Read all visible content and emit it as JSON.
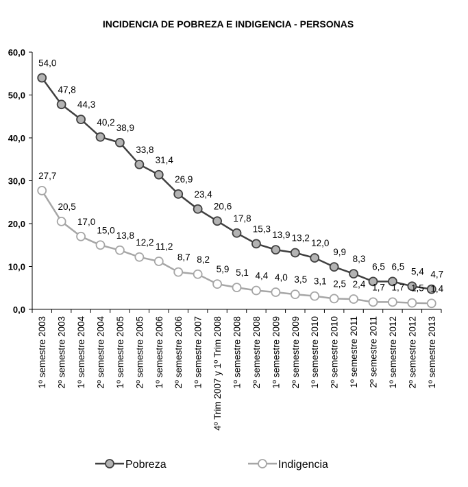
{
  "chart_data": {
    "type": "line",
    "title": "INCIDENCIA DE POBREZA E INDIGENCIA - PERSONAS",
    "xlabel": "",
    "ylabel": "",
    "ylim": [
      0,
      60
    ],
    "yticks": [
      "0,0",
      "10,0",
      "20,0",
      "30,0",
      "40,0",
      "50,0",
      "60,0"
    ],
    "ytick_values": [
      0,
      10,
      20,
      30,
      40,
      50,
      60
    ],
    "legend_position": "bottom",
    "categories": [
      "1º semestre 2003",
      "2º semestre 2003",
      "1º semestre 2004",
      "2º semestre 2004",
      "1º semestre 2005",
      "2º semestre 2005",
      "1º semestre 2006",
      "2º semestre 2006",
      "1º semestre  2007",
      "4º Trim 2007 y 1º Trim 2008",
      "1º semestre 2008",
      "2º semestre 2008",
      "1º semestre 2009",
      "2º semestre 2009",
      "1º semestre 2010",
      "2º semestre 2010",
      "1º semestre 2011",
      "2º semestre 2011",
      "1º semestre 2012",
      "2º semestre 2012",
      "1º semestre 2013"
    ],
    "series": [
      {
        "name": "Pobreza",
        "color": "#404040",
        "marker_fill": "#b3b3b3",
        "values": [
          54.0,
          47.8,
          44.3,
          40.2,
          38.9,
          33.8,
          31.4,
          26.9,
          23.4,
          20.6,
          17.8,
          15.3,
          13.9,
          13.2,
          12.0,
          9.9,
          8.3,
          6.5,
          6.5,
          5.4,
          4.7
        ],
        "labels": [
          "54,0",
          "47,8",
          "44,3",
          "40,2",
          "38,9",
          "33,8",
          "31,4",
          "26,9",
          "23,4",
          "20,6",
          "17,8",
          "15,3",
          "13,9",
          "13,2",
          "12,0",
          "9,9",
          "8,3",
          "6,5",
          "6,5",
          "5,4",
          "4,7"
        ]
      },
      {
        "name": "Indigencia",
        "color": "#a6a6a6",
        "marker_fill": "#ffffff",
        "values": [
          27.7,
          20.5,
          17.0,
          15.0,
          13.8,
          12.2,
          11.2,
          8.7,
          8.2,
          5.9,
          5.1,
          4.4,
          4.0,
          3.5,
          3.1,
          2.5,
          2.4,
          1.7,
          1.7,
          1.5,
          1.4
        ],
        "labels": [
          "27,7",
          "20,5",
          "17,0",
          "15,0",
          "13,8",
          "12,2",
          "11,2",
          "8,7",
          "8,2",
          "5,9",
          "5,1",
          "4,4",
          "4,0",
          "3,5",
          "3,1",
          "2,5",
          "2,4",
          "1,7",
          "1,7",
          "1,5",
          "1,4"
        ]
      }
    ]
  }
}
